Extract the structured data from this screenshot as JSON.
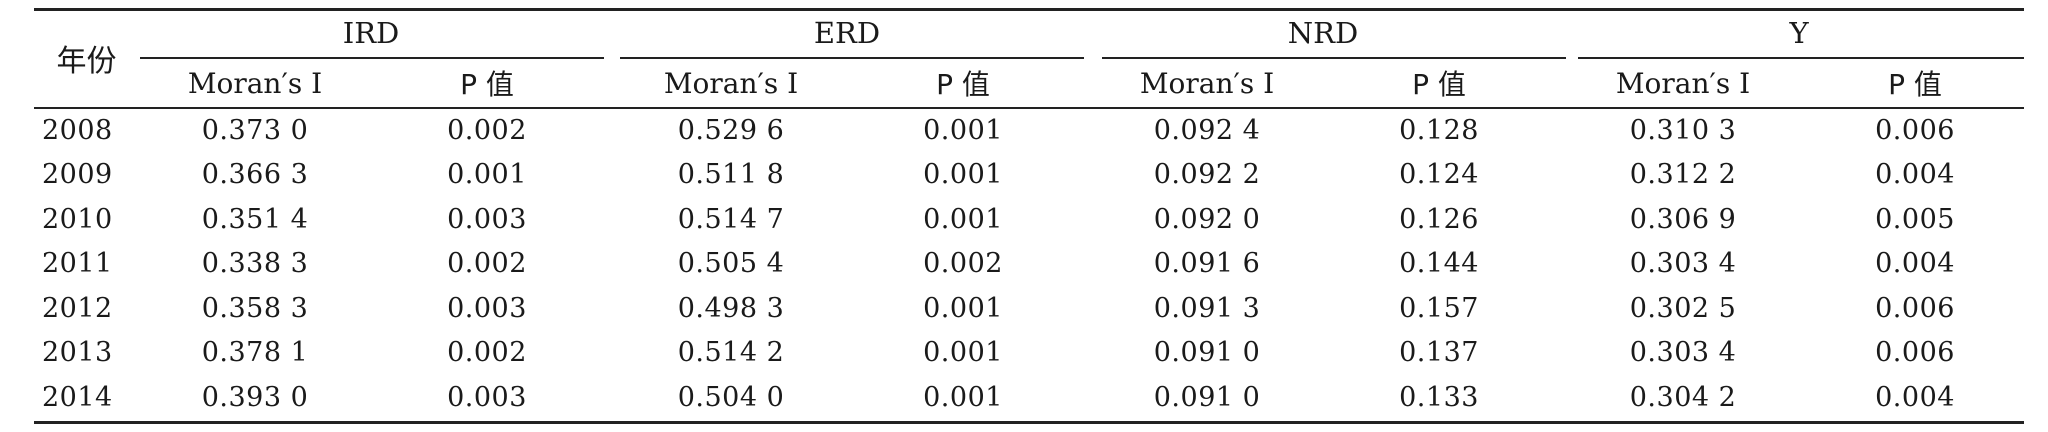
{
  "table": {
    "year_header": "年份",
    "groups": [
      "IRD",
      "ERD",
      "NRD",
      "Y"
    ],
    "subheaders": [
      "Moran′s I",
      "P 值"
    ],
    "rows": [
      {
        "year": "2008",
        "values": [
          "0.373 0",
          "0.002",
          "0.529 6",
          "0.001",
          "0.092 4",
          "0.128",
          "0.310 3",
          "0.006"
        ]
      },
      {
        "year": "2009",
        "values": [
          "0.366 3",
          "0.001",
          "0.511 8",
          "0.001",
          "0.092 2",
          "0.124",
          "0.312 2",
          "0.004"
        ]
      },
      {
        "year": "2010",
        "values": [
          "0.351 4",
          "0.003",
          "0.514 7",
          "0.001",
          "0.092 0",
          "0.126",
          "0.306 9",
          "0.005"
        ]
      },
      {
        "year": "2011",
        "values": [
          "0.338 3",
          "0.002",
          "0.505 4",
          "0.002",
          "0.091 6",
          "0.144",
          "0.303 4",
          "0.004"
        ]
      },
      {
        "year": "2012",
        "values": [
          "0.358 3",
          "0.003",
          "0.498 3",
          "0.001",
          "0.091 3",
          "0.157",
          "0.302 5",
          "0.006"
        ]
      },
      {
        "year": "2013",
        "values": [
          "0.378 1",
          "0.002",
          "0.514 2",
          "0.001",
          "0.091 0",
          "0.137",
          "0.303 4",
          "0.006"
        ]
      },
      {
        "year": "2014",
        "values": [
          "0.393 0",
          "0.003",
          "0.504 0",
          "0.001",
          "0.091 0",
          "0.133",
          "0.304 2",
          "0.004"
        ]
      }
    ]
  }
}
